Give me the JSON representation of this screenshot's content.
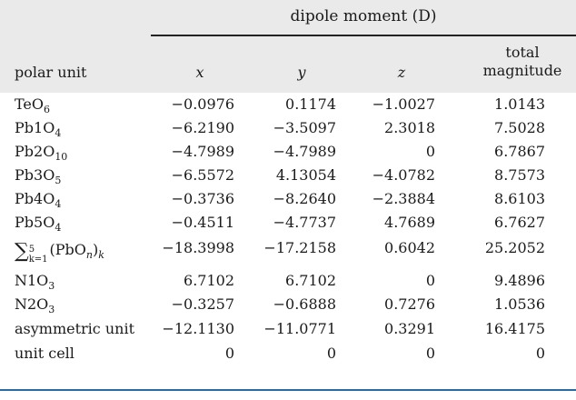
{
  "table": {
    "group_header": "dipole moment (D)",
    "headers": {
      "unit": "polar unit",
      "x": "x",
      "y": "y",
      "z": "z",
      "total_line1": "total",
      "total_line2": "magnitude"
    },
    "rows": [
      {
        "base": "TeO",
        "sub": "6",
        "x": "−0.0976",
        "y": "0.1174",
        "z": "−1.0027",
        "total": "1.0143"
      },
      {
        "base": "Pb1O",
        "sub": "4",
        "x": "−6.2190",
        "y": "−3.5097",
        "z": "2.3018",
        "total": "7.5028"
      },
      {
        "base": "Pb2O",
        "sub": "10",
        "x": "−4.7989",
        "y": "−4.7989",
        "z": "0",
        "total": "6.7867"
      },
      {
        "base": "Pb3O",
        "sub": "5",
        "x": "−6.5572",
        "y": "4.13054",
        "z": "−4.0782",
        "total": "8.7573"
      },
      {
        "base": "Pb4O",
        "sub": "4",
        "x": "−0.3736",
        "y": "−8.2640",
        "z": "−2.3884",
        "total": "8.6103"
      },
      {
        "base": "Pb5O",
        "sub": "4",
        "x": "−0.4511",
        "y": "−4.7737",
        "z": "4.7689",
        "total": "6.7627"
      },
      {
        "sum_upper": "5",
        "sum_lower": "k=1",
        "sum_body": "(PbO",
        "sum_n": "n",
        "sum_close": ")",
        "sum_k": "k",
        "x": "−18.3998",
        "y": "−17.2158",
        "z": "0.6042",
        "total": "25.2052"
      },
      {
        "base": "N1O",
        "sub": "3",
        "x": "6.7102",
        "y": "6.7102",
        "z": "0",
        "total": "9.4896"
      },
      {
        "base": "N2O",
        "sub": "3",
        "x": "−0.3257",
        "y": "−0.6888",
        "z": "0.7276",
        "total": "1.0536"
      },
      {
        "base": "asymmetric unit",
        "sub": "",
        "x": "−12.1130",
        "y": "−11.0771",
        "z": "0.3291",
        "total": "16.4175"
      },
      {
        "base": "unit cell",
        "sub": "",
        "x": "0",
        "y": "0",
        "z": "0",
        "total": "0"
      }
    ]
  }
}
